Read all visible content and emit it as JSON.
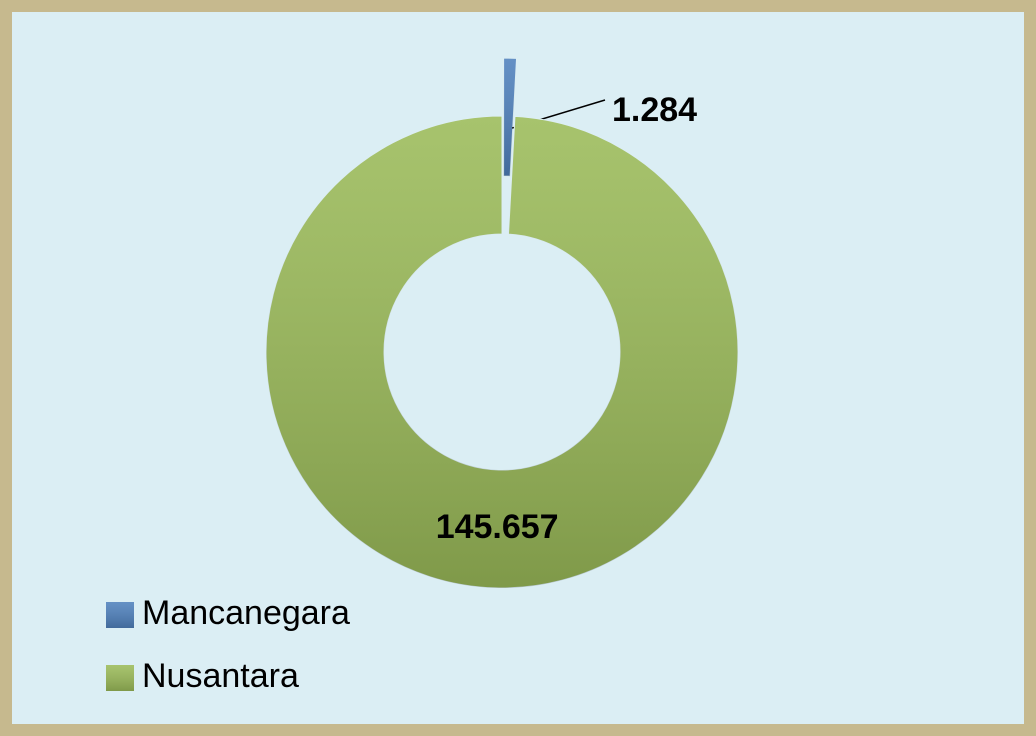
{
  "chart_data": {
    "type": "pie",
    "hole": true,
    "categories": [
      "Mancanegara",
      "Nusantara"
    ],
    "values": [
      1284,
      145657
    ],
    "value_labels": [
      "1.284",
      "145.657"
    ],
    "colors": [
      "#4f81bd",
      "#9bbb59"
    ],
    "legend": "bottom-left"
  }
}
